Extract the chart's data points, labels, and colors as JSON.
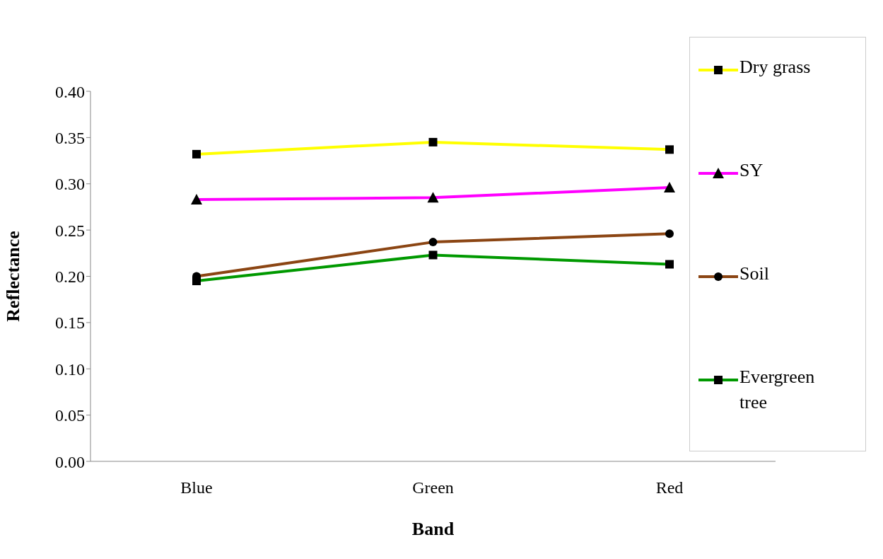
{
  "chart_data": {
    "type": "line",
    "xlabel": "Band",
    "ylabel": "Reflectance",
    "categories": [
      "Blue",
      "Green",
      "Red"
    ],
    "series": [
      {
        "name": "Dry grass",
        "color": "#ffff00",
        "values": [
          0.332,
          0.345,
          0.337
        ],
        "marker": "square"
      },
      {
        "name": "SY",
        "color": "#ff00ff",
        "values": [
          0.283,
          0.285,
          0.296
        ],
        "marker": "triangle"
      },
      {
        "name": "Soil",
        "color": "#8b4513",
        "values": [
          0.2,
          0.237,
          0.246
        ],
        "marker": "circle"
      },
      {
        "name": "Evergreen tree",
        "color": "#009900",
        "values": [
          0.195,
          0.223,
          0.213
        ],
        "marker": "square"
      }
    ],
    "ylim": [
      0,
      0.4
    ],
    "yticks": [
      {
        "value": 0,
        "label": "0.00"
      },
      {
        "value": 0.05,
        "label": "0.05"
      },
      {
        "value": 0.1,
        "label": "0.10"
      },
      {
        "value": 0.15,
        "label": "0.15"
      },
      {
        "value": 0.2,
        "label": "0.20"
      },
      {
        "value": 0.25,
        "label": "0.25"
      },
      {
        "value": 0.3,
        "label": "0.30"
      },
      {
        "value": 0.35,
        "label": "0.35"
      },
      {
        "value": 0.4,
        "label": "0.40"
      }
    ],
    "grid": false,
    "legend": "right",
    "line_style": "solid"
  }
}
